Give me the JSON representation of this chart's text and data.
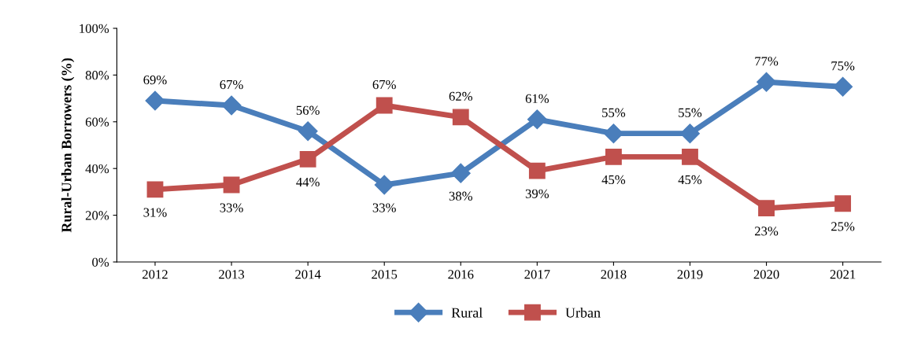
{
  "chart_data": {
    "type": "line",
    "ylabel": "Rural-Urban Borrowers (%)",
    "categories": [
      "2012",
      "2013",
      "2014",
      "2015",
      "2016",
      "2017",
      "2018",
      "2019",
      "2020",
      "2021"
    ],
    "series": [
      {
        "name": "Rural",
        "color": "#4a7ebb",
        "marker": "diamond",
        "values": [
          69,
          67,
          56,
          33,
          38,
          61,
          55,
          55,
          77,
          75
        ],
        "value_labels": [
          "69%",
          "67%",
          "56%",
          "33%",
          "38%",
          "61%",
          "55%",
          "55%",
          "77%",
          "75%"
        ]
      },
      {
        "name": "Urban",
        "color": "#c0504d",
        "marker": "square",
        "values": [
          31,
          33,
          44,
          67,
          62,
          39,
          45,
          45,
          23,
          25
        ],
        "value_labels": [
          "31%",
          "33%",
          "44%",
          "67%",
          "62%",
          "39%",
          "45%",
          "45%",
          "23%",
          "25%"
        ]
      }
    ],
    "ylim": [
      0,
      100
    ],
    "yticks": [
      {
        "value": 0,
        "label": "0%"
      },
      {
        "value": 20,
        "label": "20%"
      },
      {
        "value": 40,
        "label": "40%"
      },
      {
        "value": 60,
        "label": "60%"
      },
      {
        "value": 80,
        "label": "80%"
      },
      {
        "value": 100,
        "label": "100%"
      }
    ],
    "grid": false,
    "legend": "bottom",
    "line_style": "solid"
  }
}
